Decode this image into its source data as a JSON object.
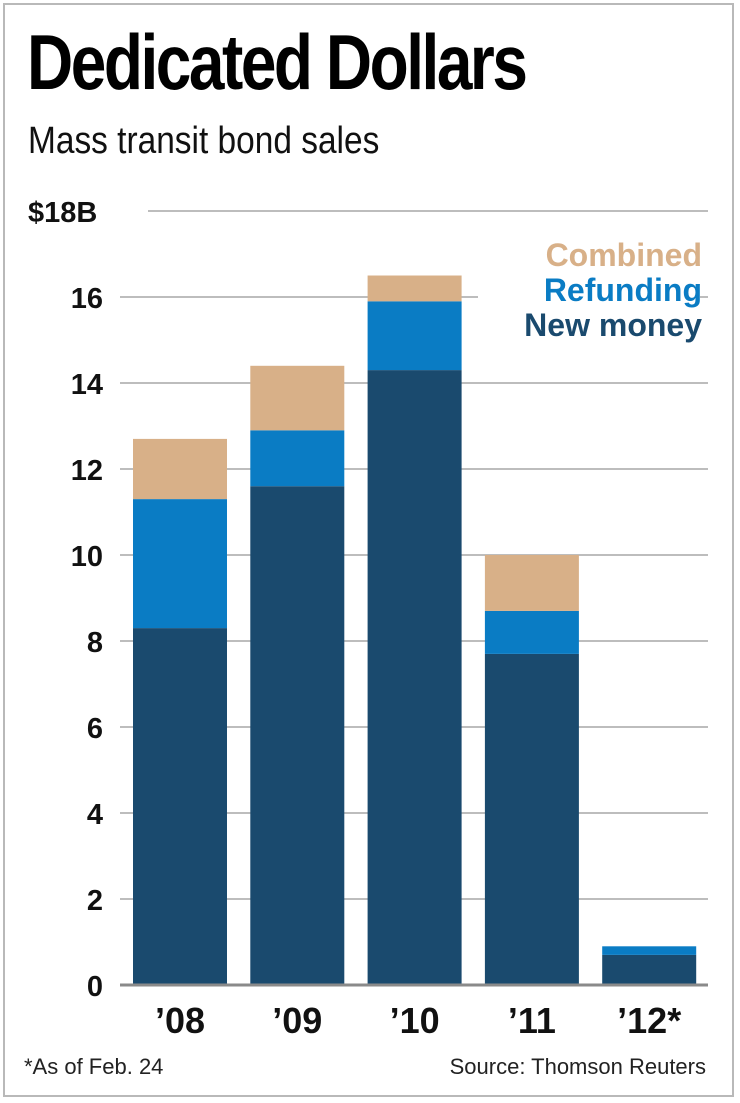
{
  "header": {
    "title": "Dedicated Dollars",
    "subtitle": "Mass transit bond sales"
  },
  "footer": {
    "footnote": "*As of Feb. 24",
    "source": "Source: Thomson Reuters"
  },
  "colors": {
    "new_money": "#1a4a6e",
    "refunding": "#0a7cc4",
    "combined": "#d8b088",
    "grid": "#bdbdbd",
    "axis": "#8a8a8a"
  },
  "chart_data": {
    "type": "bar",
    "stacked": true,
    "title": "Dedicated Dollars",
    "subtitle": "Mass transit bond sales",
    "xlabel": "",
    "ylabel": "",
    "categories": [
      "’08",
      "’09",
      "’10",
      "’11",
      "’12*"
    ],
    "series": [
      {
        "name": "New money",
        "values": [
          8.3,
          11.6,
          14.3,
          7.7,
          0.7
        ]
      },
      {
        "name": "Refunding",
        "values": [
          3.0,
          1.3,
          1.6,
          1.0,
          0.2
        ]
      },
      {
        "name": "Combined",
        "values": [
          1.4,
          1.5,
          0.6,
          1.3,
          0.0
        ]
      }
    ],
    "yticks": [
      0,
      2,
      4,
      6,
      8,
      10,
      12,
      14,
      16,
      18
    ],
    "ytick_labels": [
      "0",
      "2",
      "4",
      "6",
      "8",
      "10",
      "12",
      "14",
      "16",
      "$18B"
    ],
    "ylim": [
      0,
      18
    ],
    "grid": true,
    "legend": {
      "placement": "top-right",
      "entries": [
        "Combined",
        "Refunding",
        "New money"
      ]
    },
    "annotations": [
      "*As of Feb. 24",
      "Source: Thomson Reuters"
    ]
  }
}
